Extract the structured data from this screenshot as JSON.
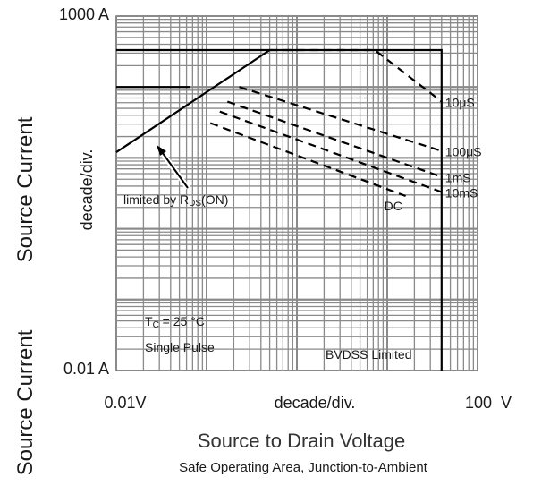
{
  "chart_data": {
    "type": "line",
    "title": "Safe Operating Area, Junction-to-Ambient",
    "xlabel": "Source to Drain Voltage",
    "ylabel": "Source Current",
    "ylabel_repeat": "Source Current",
    "x_scale": "log",
    "y_scale": "log",
    "x_tick_labels": {
      "min": "0.01V",
      "max": "100  V"
    },
    "y_tick_labels": {
      "min": "0.01 A",
      "max": "1000 A"
    },
    "x_division_label": "decade/div.",
    "y_division_label": "decade/div.",
    "xlim": [
      0.01,
      100
    ],
    "ylim": [
      0.01,
      1000
    ],
    "grid": true,
    "conditions": {
      "tc": "T",
      "tc_sub": "C",
      "tc_value": " = 25 °C",
      "pulse": "Single Pulse"
    },
    "rds_label": {
      "prefix": "limited by R",
      "sub": "DS",
      "suffix": "(ON)"
    },
    "bvdss_label": "BVDSS Limited",
    "bvdss_voltage": 40,
    "series": [
      {
        "name": "10μS",
        "style": "dashed",
        "x": [
          0.5,
          7.3,
          40
        ],
        "y": [
          331,
          331,
          62
        ]
      },
      {
        "name": "100μS",
        "style": "dashed",
        "x": [
          0.23,
          40
        ],
        "y": [
          100,
          12.5
        ]
      },
      {
        "name": "1mS",
        "style": "dashed",
        "x": [
          0.17,
          40
        ],
        "y": [
          62,
          5.4
        ]
      },
      {
        "name": "10mS",
        "style": "dashed",
        "x": [
          0.14,
          40
        ],
        "y": [
          45,
          3.3
        ]
      },
      {
        "name": "DC",
        "style": "dashed",
        "x": [
          0.11,
          16
        ],
        "y": [
          31,
          2.9
        ]
      },
      {
        "name": "",
        "style": "solid",
        "x": [
          0.01,
          0.5,
          40,
          40
        ],
        "y": [
          331,
          331,
          331,
          0.01
        ]
      },
      {
        "name": "",
        "style": "solid",
        "x": [
          0.01,
          0.065
        ],
        "y": [
          100,
          100
        ]
      },
      {
        "name": "",
        "style": "solid",
        "x": [
          0.01,
          0.5
        ],
        "y": [
          12,
          331
        ]
      }
    ]
  }
}
